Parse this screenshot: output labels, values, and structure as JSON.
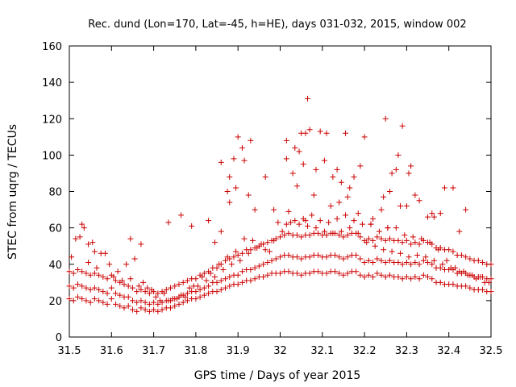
{
  "chart_data": {
    "type": "scatter",
    "title": "Rec. dund (Lon=170, Lat=-45, h=HE), days 031-032, 2015, window 002",
    "xlabel": "GPS time / Days of year 2015",
    "ylabel": "STEC from uqrg / TECUs",
    "xlim": [
      31.5,
      32.5
    ],
    "ylim": [
      0,
      160
    ],
    "xticks": [
      31.5,
      31.6,
      31.7,
      31.8,
      31.9,
      32.0,
      32.1,
      32.2,
      32.3,
      32.4,
      32.5
    ],
    "xtick_labels": [
      "31.5",
      "31.6",
      "31.7",
      "31.8",
      "31.9",
      "32",
      "32.1",
      "32.2",
      "32.3",
      "32.4",
      "32.5"
    ],
    "yticks": [
      0,
      20,
      40,
      60,
      80,
      100,
      120,
      140,
      160
    ],
    "ytick_labels": [
      "0",
      "20",
      "40",
      "60",
      "80",
      "100",
      "120",
      "140",
      "160"
    ],
    "grid": false,
    "marker": "+",
    "color": "#cc0000",
    "series": [
      {
        "x": [
          31.5,
          31.51,
          31.52,
          31.53,
          31.54,
          31.55,
          31.56,
          31.57,
          31.58,
          31.59,
          31.6,
          31.61,
          31.62,
          31.63,
          31.64,
          31.65,
          31.66,
          31.67,
          31.68,
          31.69,
          31.7,
          31.71,
          31.72,
          31.73,
          31.74,
          31.75,
          31.76,
          31.77,
          31.78,
          31.79,
          31.8,
          31.81,
          31.82,
          31.83,
          31.84,
          31.85,
          31.86,
          31.87,
          31.88,
          31.89,
          31.9,
          31.91,
          31.92,
          31.93,
          31.94,
          31.95,
          31.96,
          31.97,
          31.98,
          31.99,
          32.0,
          32.01,
          32.02,
          32.03,
          32.04,
          32.05,
          32.06,
          32.07,
          32.08,
          32.09,
          32.1,
          32.11,
          32.12,
          32.13,
          32.14,
          32.15,
          32.16,
          32.17,
          32.18,
          32.19,
          32.2,
          32.21,
          32.22,
          32.23,
          32.24,
          32.25,
          32.26,
          32.27,
          32.28,
          32.29,
          32.3,
          32.31,
          32.32,
          32.33,
          32.34,
          32.35,
          32.36,
          32.37,
          32.38,
          32.39,
          32.4,
          32.41,
          32.42,
          32.43,
          32.44,
          32.45,
          32.46,
          32.47,
          32.48,
          32.49,
          32.5,
          31.5,
          31.51,
          31.52,
          31.53,
          31.54,
          31.55,
          31.56,
          31.57,
          31.58,
          31.59,
          31.6,
          31.61,
          31.62,
          31.63,
          31.64,
          31.65,
          31.66,
          31.67,
          31.68,
          31.69,
          31.7,
          31.71,
          31.72,
          31.73,
          31.74,
          31.75,
          31.76,
          31.77,
          31.78,
          31.79,
          31.8,
          31.81,
          31.82,
          31.83,
          31.84,
          31.85,
          31.86,
          31.87,
          31.88,
          31.89,
          31.9,
          31.91,
          31.92,
          31.93,
          31.94,
          31.95,
          31.96,
          31.97,
          31.98,
          31.99,
          32.0,
          32.01,
          32.02,
          32.03,
          32.04,
          32.05,
          32.06,
          32.07,
          32.08,
          32.09,
          32.1,
          32.11,
          32.12,
          32.13,
          32.14,
          32.15,
          32.16,
          32.17,
          32.18,
          32.19,
          32.2,
          32.21,
          32.22,
          32.23,
          32.24,
          32.25,
          32.26,
          32.27,
          32.28,
          32.29,
          32.3,
          32.31,
          32.32,
          32.33,
          32.34,
          32.35,
          32.36,
          32.37,
          32.38,
          32.39,
          32.4,
          32.41,
          32.42,
          32.43,
          32.44,
          32.45,
          32.46,
          32.47,
          32.48,
          32.49,
          32.5,
          31.5,
          31.51,
          31.52,
          31.53,
          31.54,
          31.55,
          31.56,
          31.57,
          31.58,
          31.59,
          31.6,
          31.61,
          31.62,
          31.63,
          31.64,
          31.65,
          31.66,
          31.67,
          31.68,
          31.69,
          31.7,
          31.71,
          31.72,
          31.73,
          31.74,
          31.75,
          31.76,
          31.77,
          31.78,
          31.79,
          31.8,
          31.81,
          31.82,
          31.83,
          31.84,
          31.85,
          31.86,
          31.87,
          31.88,
          31.89,
          31.9,
          31.91,
          31.92,
          31.93,
          31.94,
          31.95,
          31.96,
          31.97,
          31.98,
          31.99,
          32.0,
          32.01,
          32.02,
          32.03,
          32.04,
          32.05,
          32.06,
          32.07,
          32.08,
          32.09,
          32.1,
          32.11,
          32.12,
          32.13,
          32.14,
          32.15,
          32.16,
          32.17,
          32.18,
          32.19,
          32.2,
          32.21,
          32.22,
          32.23,
          32.24,
          32.25,
          32.26,
          32.27,
          32.28,
          32.29,
          32.3,
          32.31,
          32.32,
          32.33,
          32.34,
          32.35,
          32.36,
          32.37,
          32.38,
          32.39,
          32.4,
          32.41,
          32.42,
          32.43,
          32.44,
          32.45,
          32.46,
          32.47,
          32.48,
          32.49,
          32.5,
          31.505,
          31.525,
          31.545,
          31.565,
          31.585,
          31.605,
          31.625,
          31.645,
          31.665,
          31.685,
          31.705,
          31.725,
          31.745,
          31.765,
          31.785,
          31.805,
          31.825,
          31.845,
          31.865,
          31.885,
          31.905,
          31.925,
          31.945,
          31.965,
          31.985,
          32.005,
          32.025,
          32.045,
          32.065,
          32.085,
          32.105,
          32.125,
          32.145,
          32.165,
          32.185,
          32.205,
          32.225,
          32.245,
          32.265,
          32.285,
          32.305,
          32.325,
          32.345,
          32.365,
          32.385,
          32.405,
          32.425,
          32.445,
          32.465,
          32.485,
          31.515,
          31.535,
          31.555,
          31.575,
          31.595,
          31.615,
          31.635,
          31.655,
          31.675,
          31.695,
          31.715,
          31.735,
          31.755,
          31.775,
          31.795,
          31.815,
          31.835,
          31.855,
          31.875,
          31.895,
          31.915,
          31.935,
          31.955,
          31.975,
          31.995,
          32.015,
          32.035,
          32.055,
          32.075,
          32.095,
          32.115,
          32.135,
          32.155,
          32.175,
          32.195,
          32.215,
          32.235,
          32.255,
          32.275,
          32.295,
          32.315,
          32.335,
          32.355,
          32.375,
          32.395,
          32.415,
          32.435,
          32.455,
          32.475,
          32.495,
          31.86,
          31.875,
          31.88,
          31.895,
          31.9,
          31.915,
          31.925,
          31.94,
          32.015,
          32.03,
          32.04,
          32.045,
          32.055,
          32.06,
          32.07,
          32.085,
          32.105,
          32.125,
          32.145,
          32.165,
          32.19,
          32.25,
          32.265,
          32.275,
          32.29,
          32.31,
          32.32,
          32.365,
          32.41,
          31.88,
          31.89,
          31.91,
          31.93,
          31.965,
          31.985,
          32.015,
          32.035,
          32.05,
          32.065,
          32.095,
          32.11,
          32.135,
          32.155,
          32.175,
          32.2,
          32.215,
          32.24,
          32.255,
          32.28,
          32.3,
          32.33,
          32.36,
          32.38,
          32.425,
          31.53,
          31.545,
          31.56,
          31.645,
          31.67,
          31.735,
          31.765,
          31.79,
          31.83,
          31.845,
          31.86,
          32.02,
          32.06,
          32.08,
          32.12,
          32.14,
          32.16,
          32.185,
          32.22,
          32.245,
          32.26,
          32.285,
          32.305,
          32.35,
          32.39,
          32.44
        ],
        "y": [
          21,
          20,
          22,
          21,
          20,
          19,
          21,
          20,
          19,
          18,
          21,
          18,
          17,
          16,
          17,
          15,
          14,
          16,
          15,
          14,
          15,
          14,
          15,
          16,
          16,
          17,
          18,
          19,
          20,
          21,
          21,
          22,
          23,
          24,
          25,
          25,
          26,
          27,
          28,
          29,
          29,
          30,
          31,
          31,
          32,
          33,
          33,
          34,
          35,
          35,
          35,
          36,
          36,
          35,
          35,
          34,
          35,
          35,
          36,
          36,
          35,
          35,
          36,
          36,
          35,
          34,
          35,
          36,
          36,
          34,
          33,
          34,
          33,
          35,
          34,
          33,
          34,
          33,
          33,
          32,
          33,
          32,
          33,
          32,
          34,
          33,
          32,
          30,
          30,
          29,
          29,
          29,
          28,
          28,
          28,
          27,
          26,
          26,
          26,
          25,
          25,
          28,
          27,
          29,
          28,
          27,
          26,
          27,
          26,
          25,
          24,
          27,
          24,
          23,
          22,
          22,
          20,
          19,
          20,
          19,
          18,
          19,
          18,
          19,
          20,
          20,
          21,
          22,
          23,
          24,
          25,
          25,
          26,
          27,
          28,
          30,
          30,
          31,
          32,
          33,
          34,
          34,
          36,
          37,
          37,
          38,
          39,
          40,
          41,
          42,
          43,
          44,
          45,
          45,
          44,
          44,
          43,
          44,
          44,
          45,
          45,
          44,
          44,
          45,
          45,
          44,
          43,
          44,
          45,
          45,
          43,
          41,
          42,
          41,
          43,
          42,
          41,
          42,
          41,
          41,
          40,
          41,
          40,
          41,
          40,
          42,
          41,
          40,
          38,
          38,
          37,
          37,
          37,
          35,
          35,
          35,
          34,
          33,
          33,
          33,
          32,
          32,
          36,
          35,
          37,
          36,
          35,
          34,
          35,
          34,
          33,
          32,
          34,
          31,
          30,
          29,
          28,
          27,
          25,
          26,
          25,
          24,
          25,
          24,
          25,
          26,
          27,
          28,
          29,
          30,
          31,
          32,
          32,
          34,
          35,
          36,
          38,
          38,
          40,
          42,
          43,
          44,
          45,
          46,
          48,
          48,
          49,
          50,
          51,
          52,
          53,
          54,
          55,
          56,
          57,
          56,
          56,
          55,
          56,
          56,
          57,
          57,
          56,
          56,
          57,
          57,
          56,
          55,
          56,
          57,
          57,
          55,
          53,
          54,
          53,
          55,
          54,
          53,
          54,
          53,
          53,
          52,
          53,
          51,
          52,
          51,
          53,
          52,
          51,
          49,
          49,
          48,
          48,
          47,
          45,
          45,
          44,
          43,
          42,
          42,
          41,
          40,
          40,
          44,
          55,
          41,
          38,
          46,
          33,
          31,
          32,
          28,
          27,
          22,
          24,
          21,
          23,
          27,
          28,
          31,
          33,
          37,
          40,
          42,
          46,
          49,
          48,
          53,
          58,
          63,
          62,
          61,
          60,
          58,
          57,
          58,
          60,
          57,
          52,
          50,
          48,
          47,
          46,
          44,
          45,
          44,
          42,
          40,
          38,
          36,
          34,
          32,
          30,
          54,
          60,
          52,
          46,
          40,
          36,
          40,
          43,
          30,
          26,
          20,
          20,
          21,
          22,
          28,
          33,
          35,
          40,
          44,
          47,
          54,
          53,
          51,
          47,
          63,
          62,
          64,
          65,
          67,
          64,
          63,
          65,
          67,
          64,
          62,
          62,
          58,
          60,
          60,
          56,
          55,
          54,
          52,
          48,
          42,
          38,
          36,
          34,
          33,
          30,
          96,
          80,
          74,
          82,
          110,
          97,
          78,
          70,
          98,
          90,
          83,
          102,
          95,
          112,
          114,
          92,
          97,
          88,
          85,
          82,
          94,
          120,
          90,
          92,
          116,
          94,
          78,
          66,
          82,
          88,
          98,
          104,
          108,
          88,
          70,
          108,
          104,
          112,
          131,
          113,
          112,
          92,
          112,
          88,
          110,
          62,
          70,
          60,
          100,
          72,
          75,
          68,
          68,
          58,
          62,
          51,
          47,
          54,
          51,
          63,
          67,
          61,
          64,
          52,
          58,
          69,
          64,
          78,
          72,
          74,
          77,
          68,
          65,
          77,
          80,
          72,
          90,
          66,
          82,
          70
        ]
      }
    ]
  }
}
